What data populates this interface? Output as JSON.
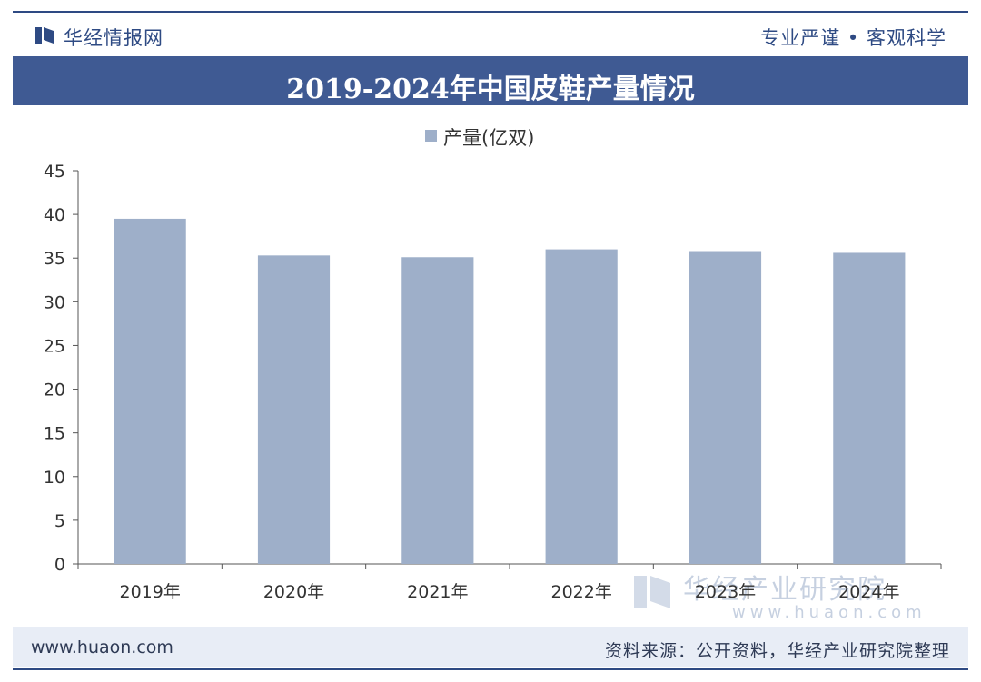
{
  "header": {
    "brand": "华经情报网",
    "slogan": "专业严谨 • 客观科学",
    "title": "2019-2024年中国皮鞋产量情况"
  },
  "footer": {
    "url": "www.huaon.com",
    "source": "资料来源：公开资料，华经产业研究院整理"
  },
  "watermark": {
    "name": "华经产业研究院",
    "url": "www.huaon.com"
  },
  "colors": {
    "brand": "#2e4a83",
    "title_bar": "#3f5a93",
    "bar": "#9eafc9"
  },
  "chart_data": {
    "type": "bar",
    "title": "2019-2024年中国皮鞋产量情况",
    "categories": [
      "2019年",
      "2020年",
      "2021年",
      "2022年",
      "2023年",
      "2024年"
    ],
    "series": [
      {
        "name": "产量(亿双)",
        "values": [
          39.5,
          35.3,
          35.1,
          36.0,
          35.8,
          35.6
        ]
      }
    ],
    "ylim": [
      0,
      45
    ],
    "yticks": [
      0,
      5,
      10,
      15,
      20,
      25,
      30,
      35,
      40,
      45
    ],
    "xlabel": "",
    "ylabel": "",
    "legend": "top-center",
    "grid": false
  }
}
